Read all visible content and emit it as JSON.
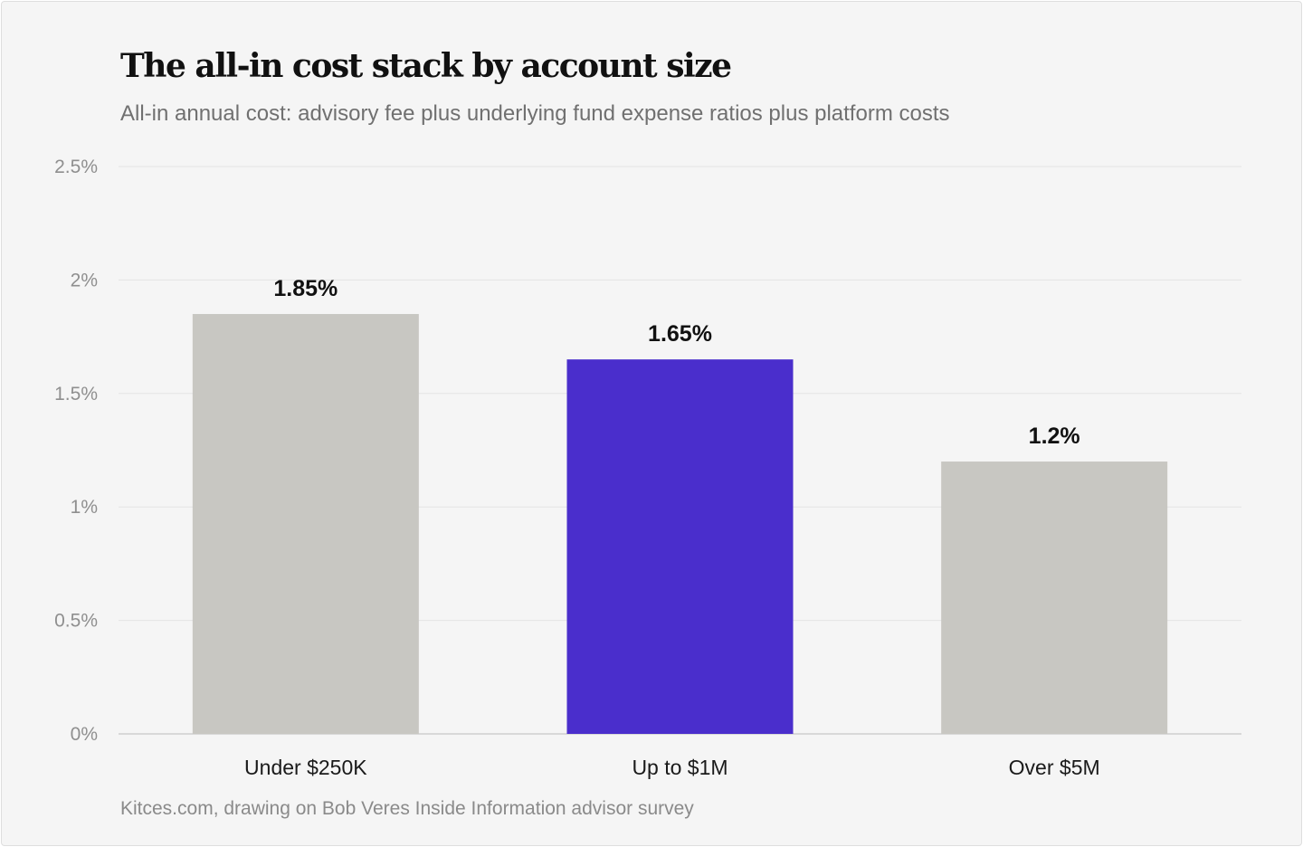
{
  "chart_data": {
    "type": "bar",
    "title": "The all-in cost stack by account size",
    "subtitle": "All-in annual cost: advisory fee plus underlying fund expense ratios plus platform costs",
    "source": "Kitces.com, drawing on Bob Veres Inside Information advisor survey",
    "categories": [
      "Under $250K",
      "Up to $1M",
      "Over $5M"
    ],
    "values": [
      1.85,
      1.65,
      1.2
    ],
    "value_labels": [
      "1.85%",
      "1.65%",
      "1.2%"
    ],
    "highlight_index": 1,
    "ylim": [
      0,
      2.5
    ],
    "yticks": [
      0,
      0.5,
      1,
      1.5,
      2,
      2.5
    ],
    "ytick_labels": [
      "0%",
      "0.5%",
      "1%",
      "1.5%",
      "2%",
      "2.5%"
    ],
    "grid": true,
    "xlabel": "",
    "ylabel": "",
    "colors": {
      "default_bar": "#c8c7c2",
      "highlight_bar": "#4a2ecc",
      "grid": "#e3e3e3",
      "axis": "#cfcfcf"
    }
  }
}
